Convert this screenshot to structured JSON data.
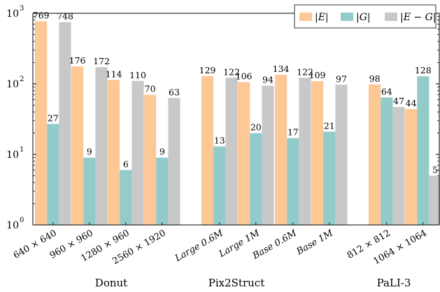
{
  "chart_data": {
    "type": "bar",
    "yscale": "log",
    "ylim": [
      1,
      1000
    ],
    "yticks": [
      {
        "base": "10",
        "exp": "0"
      },
      {
        "base": "10",
        "exp": "1"
      },
      {
        "base": "10",
        "exp": "2"
      },
      {
        "base": "10",
        "exp": "3"
      }
    ],
    "legend_position": "top-right",
    "colors": [
      "#fdc896",
      "#93cbcb",
      "#c8c8c8"
    ],
    "series": [
      {
        "name": "|E|"
      },
      {
        "name": "|G|"
      },
      {
        "name": "|E − G|"
      }
    ],
    "categories": [
      {
        "label": "640 × 640",
        "italic": false,
        "values": [
          769,
          27,
          748
        ],
        "value_labels": [
          "769",
          "27",
          "748"
        ]
      },
      {
        "label": "960 × 960",
        "italic": false,
        "values": [
          176,
          9,
          172
        ],
        "value_labels": [
          "176",
          "9",
          "172"
        ]
      },
      {
        "label": "1280 × 960",
        "italic": false,
        "values": [
          114,
          6,
          110
        ],
        "value_labels": [
          "114",
          "6",
          "110"
        ]
      },
      {
        "label": "2560 × 1920",
        "italic": false,
        "values": [
          70,
          9,
          63
        ],
        "value_labels": [
          "70",
          "9",
          "63"
        ]
      },
      {
        "label": "Large 0.6M",
        "italic": true,
        "values": [
          129,
          13,
          122
        ],
        "value_labels": [
          "129",
          "13",
          "122"
        ]
      },
      {
        "label": "Large 1M",
        "italic": true,
        "values": [
          106,
          20,
          94
        ],
        "value_labels": [
          "106",
          "20",
          "94"
        ]
      },
      {
        "label": "Base 0.6M",
        "italic": true,
        "values": [
          134,
          17,
          122
        ],
        "value_labels": [
          "134",
          "17",
          "122"
        ]
      },
      {
        "label": "Base 1M",
        "italic": true,
        "values": [
          109,
          21,
          97
        ],
        "value_labels": [
          "109",
          "21",
          "97"
        ]
      },
      {
        "label": "812 × 812",
        "italic": false,
        "values": [
          98,
          64,
          47
        ],
        "value_labels": [
          "98",
          "64",
          "47"
        ]
      },
      {
        "label": "1064 × 1064",
        "italic": false,
        "values": [
          44,
          128,
          5
        ],
        "value_labels": [
          "44",
          "128",
          "5"
        ]
      }
    ],
    "groups": [
      {
        "name": "Donut"
      },
      {
        "name": "Pix2Struct"
      },
      {
        "name": "PaLI-3"
      }
    ]
  }
}
